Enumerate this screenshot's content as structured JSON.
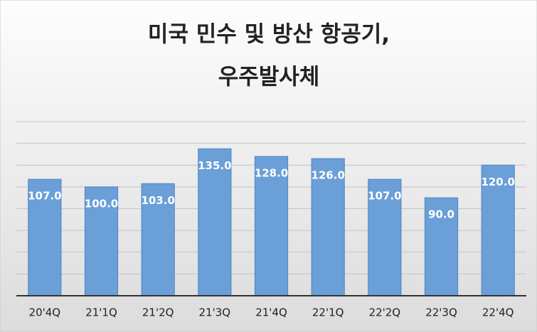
{
  "chart_data": {
    "type": "bar",
    "title": [
      "미국 민수 및 방산 항공기,",
      "우주발사체"
    ],
    "categories": [
      "20'4Q",
      "21'1Q",
      "21'2Q",
      "21'3Q",
      "21'4Q",
      "22'1Q",
      "22'2Q",
      "22'3Q",
      "22'4Q"
    ],
    "values": [
      107,
      100,
      103,
      135,
      128,
      126,
      107,
      90,
      120
    ],
    "value_labels": [
      "107.0",
      "100.0",
      "103.0",
      "135.0",
      "128.0",
      "126.0",
      "107.0",
      "90.0",
      "120.0"
    ],
    "color": "#6a9fd8",
    "ylim": [
      0,
      160
    ],
    "yticks": [
      0,
      20,
      40,
      60,
      80,
      100,
      120,
      140,
      160
    ],
    "grid": true
  }
}
